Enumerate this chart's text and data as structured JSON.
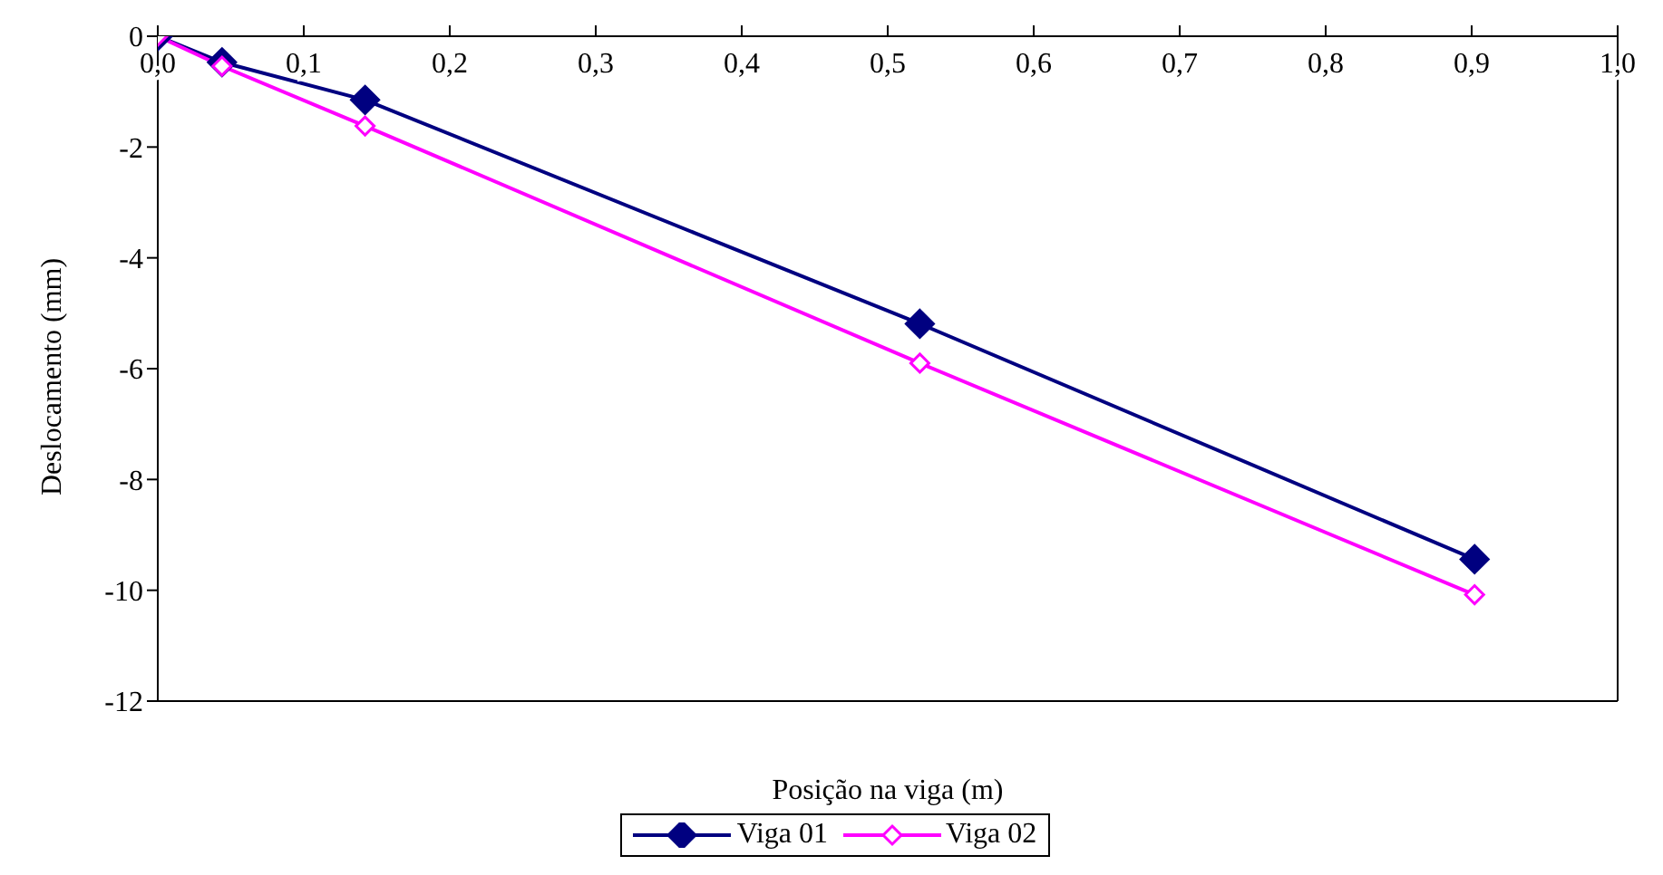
{
  "chart_data": {
    "type": "line",
    "xlabel": "Posição na viga  (m)",
    "ylabel": "Deslocamento (mm)",
    "x": [
      0,
      0.044,
      0.142,
      0.522,
      0.902
    ],
    "series": [
      {
        "name": "Viga 01",
        "color": "#000080",
        "values": [
          0,
          -0.47,
          -1.15,
          -5.19,
          -9.44
        ]
      },
      {
        "name": "Viga 02",
        "color": "#ff00ff",
        "values": [
          0,
          -0.54,
          -1.62,
          -5.9,
          -10.08
        ]
      }
    ],
    "xlim": [
      0,
      1
    ],
    "ylim": [
      -12,
      0
    ],
    "xticks": [
      {
        "value": 0,
        "label": "0,0"
      },
      {
        "value": 0.1,
        "label": "0,1"
      },
      {
        "value": 0.2,
        "label": "0,2"
      },
      {
        "value": 0.3,
        "label": "0,3"
      },
      {
        "value": 0.4,
        "label": "0,4"
      },
      {
        "value": 0.5,
        "label": "0,5"
      },
      {
        "value": 0.6,
        "label": "0,6"
      },
      {
        "value": 0.7,
        "label": "0,7"
      },
      {
        "value": 0.8,
        "label": "0,8"
      },
      {
        "value": 0.9,
        "label": "0,9"
      },
      {
        "value": 1,
        "label": "1,0"
      }
    ],
    "yticks": [
      0,
      -2,
      -4,
      -6,
      -8,
      -10,
      -12
    ],
    "marker": "diamond",
    "grid": false,
    "legend": "bottom"
  }
}
